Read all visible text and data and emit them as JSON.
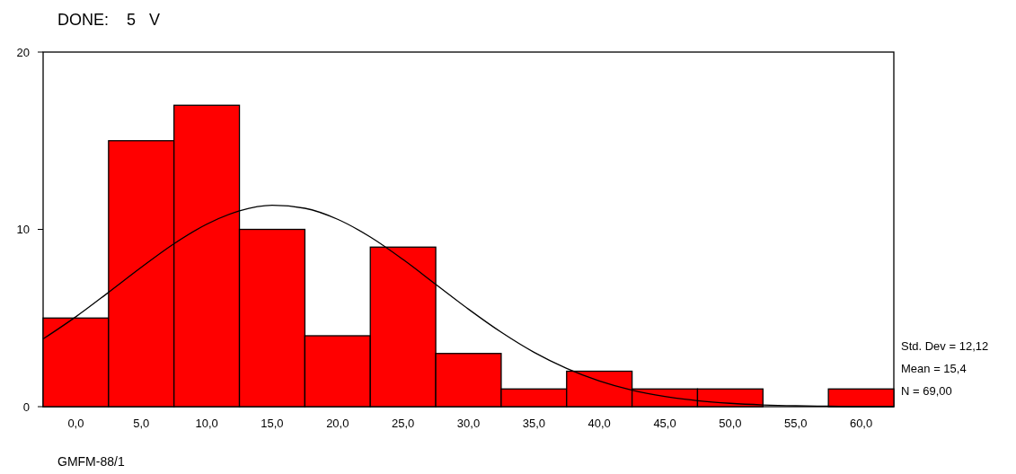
{
  "chart_data": {
    "type": "histogram",
    "title": "DONE:    5   V",
    "xlabel": "GMFM-88/1",
    "bins": [
      -2.5,
      2.5,
      7.5,
      12.5,
      17.5,
      22.5,
      27.5,
      32.5,
      37.5,
      42.5,
      47.5,
      52.5,
      57.5,
      62.5
    ],
    "values": [
      5,
      15,
      17,
      10,
      4,
      9,
      3,
      1,
      2,
      1,
      1,
      0,
      1
    ],
    "color": "#ff0000",
    "series": [
      {
        "type": "line",
        "color": "#000000",
        "x": [
          -2.5,
          0,
          2.5,
          5,
          7.5,
          10,
          12.5,
          15,
          17.5,
          20,
          22.5,
          25,
          27.5,
          30,
          32.5,
          35,
          37.5,
          40,
          42.5,
          45,
          47.5,
          50,
          52.5,
          55,
          57.5,
          60,
          62.5
        ],
        "values": [
          3.82,
          5.07,
          6.45,
          7.86,
          9.19,
          10.29,
          11.04,
          11.36,
          11.19,
          10.57,
          9.57,
          8.3,
          6.9,
          5.5,
          4.2,
          3.07,
          2.16,
          1.45,
          0.93,
          0.58,
          0.34,
          0.19,
          0.1,
          0.05,
          0.03,
          0.01,
          0.01
        ]
      }
    ],
    "xlim": [
      -2.5,
      62.5
    ],
    "xticks": [
      {
        "value": 0,
        "label": "0,0"
      },
      {
        "value": 5,
        "label": "5,0"
      },
      {
        "value": 10,
        "label": "10,0"
      },
      {
        "value": 15,
        "label": "15,0"
      },
      {
        "value": 20,
        "label": "20,0"
      },
      {
        "value": 25,
        "label": "25,0"
      },
      {
        "value": 30,
        "label": "30,0"
      },
      {
        "value": 35,
        "label": "35,0"
      },
      {
        "value": 40,
        "label": "40,0"
      },
      {
        "value": 45,
        "label": "45,0"
      },
      {
        "value": 50,
        "label": "50,0"
      },
      {
        "value": 55,
        "label": "55,0"
      },
      {
        "value": 60,
        "label": "60,0"
      }
    ],
    "ylim": [
      0,
      20
    ],
    "yticks": [
      0,
      10,
      20
    ],
    "annotations": [
      "Std. Dev = 12,12",
      "Mean = 15,4",
      "N = 69,00"
    ]
  }
}
